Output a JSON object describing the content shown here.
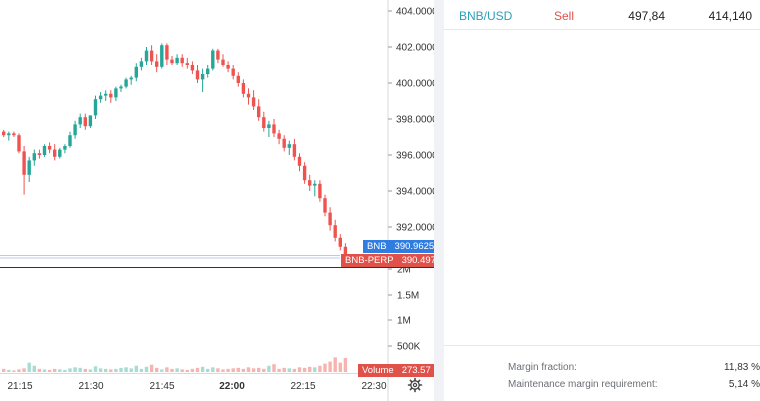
{
  "chart": {
    "price_axis_labels": [
      "404.0000",
      "402.0000",
      "400.0000",
      "398.0000",
      "396.0000",
      "394.0000",
      "392.0000"
    ],
    "volume_axis_labels": [
      "2M",
      "1.5M",
      "1M",
      "500K"
    ],
    "time_labels": [
      "21:15",
      "21:30",
      "21:45",
      "22:00",
      "22:15",
      "22:30"
    ],
    "bold_time_label": "22:00",
    "bnb_tag": {
      "name": "BNB",
      "value": "390.9625",
      "color": "#2f7de1"
    },
    "perp_tag": {
      "name": "BNB-PERP",
      "value": "390.4975",
      "color": "#e0514a"
    },
    "volume_tag": {
      "name": "Volume",
      "value": "273.57",
      "color": "#e0514a"
    },
    "up_color": "#26a69a",
    "down_color": "#ef5350"
  },
  "chart_data": {
    "type": "candlestick",
    "price_range": [
      390.5,
      404.5
    ],
    "volume_ticks": [
      500000,
      1000000,
      1500000,
      2000000
    ],
    "time_range": [
      "21:05",
      "22:25"
    ],
    "candles_ohlc": [
      [
        397.3,
        397.4,
        397.0,
        397.1
      ],
      [
        397.1,
        397.3,
        396.8,
        397.2
      ],
      [
        397.2,
        397.3,
        397.0,
        397.1
      ],
      [
        397.1,
        397.2,
        396.1,
        396.2
      ],
      [
        396.2,
        396.5,
        393.8,
        394.9
      ],
      [
        394.9,
        395.9,
        394.5,
        395.7
      ],
      [
        395.7,
        396.3,
        395.4,
        396.1
      ],
      [
        396.1,
        396.3,
        395.8,
        396.0
      ],
      [
        396.0,
        396.6,
        395.9,
        396.5
      ],
      [
        396.5,
        396.7,
        396.1,
        396.3
      ],
      [
        396.3,
        396.6,
        395.7,
        395.9
      ],
      [
        395.9,
        396.4,
        395.8,
        396.3
      ],
      [
        396.3,
        396.6,
        396.1,
        396.5
      ],
      [
        396.5,
        397.3,
        396.4,
        397.1
      ],
      [
        397.1,
        397.9,
        396.9,
        397.7
      ],
      [
        397.7,
        398.3,
        397.5,
        398.1
      ],
      [
        398.1,
        398.3,
        397.4,
        397.6
      ],
      [
        397.6,
        398.2,
        397.5,
        398.2
      ],
      [
        398.2,
        399.3,
        398.0,
        399.1
      ],
      [
        399.1,
        399.5,
        398.9,
        399.3
      ],
      [
        399.3,
        399.6,
        399.0,
        399.4
      ],
      [
        399.4,
        399.6,
        398.9,
        399.2
      ],
      [
        399.2,
        399.8,
        399.0,
        399.7
      ],
      [
        399.7,
        399.9,
        399.5,
        399.8
      ],
      [
        399.8,
        400.3,
        399.7,
        400.2
      ],
      [
        400.2,
        400.4,
        399.9,
        400.3
      ],
      [
        400.3,
        401.1,
        400.1,
        400.9
      ],
      [
        400.9,
        401.4,
        400.7,
        401.2
      ],
      [
        401.2,
        402.0,
        401.0,
        401.8
      ],
      [
        401.8,
        402.1,
        401.0,
        401.2
      ],
      [
        401.2,
        401.6,
        400.6,
        400.9
      ],
      [
        400.9,
        402.2,
        400.8,
        402.1
      ],
      [
        402.1,
        402.2,
        401.0,
        401.3
      ],
      [
        401.3,
        401.5,
        401.0,
        401.1
      ],
      [
        401.1,
        401.6,
        401.0,
        401.4
      ],
      [
        401.4,
        401.6,
        400.9,
        401.1
      ],
      [
        401.1,
        401.4,
        400.8,
        401.0
      ],
      [
        401.0,
        401.2,
        400.5,
        400.7
      ],
      [
        400.7,
        401.0,
        400.0,
        400.2
      ],
      [
        400.2,
        400.8,
        399.5,
        400.5
      ],
      [
        400.5,
        401.0,
        400.3,
        400.8
      ],
      [
        400.8,
        401.9,
        400.7,
        401.8
      ],
      [
        401.8,
        401.9,
        401.1,
        401.3
      ],
      [
        401.3,
        401.6,
        400.9,
        401.0
      ],
      [
        401.0,
        401.2,
        400.6,
        400.8
      ],
      [
        400.8,
        401.0,
        400.2,
        400.4
      ],
      [
        400.4,
        400.6,
        399.8,
        400.0
      ],
      [
        400.0,
        400.2,
        399.2,
        399.4
      ],
      [
        399.4,
        399.7,
        398.8,
        399.2
      ],
      [
        399.2,
        399.6,
        398.5,
        398.7
      ],
      [
        398.7,
        399.1,
        397.9,
        398.1
      ],
      [
        398.1,
        398.4,
        397.3,
        397.5
      ],
      [
        397.5,
        397.9,
        397.0,
        397.7
      ],
      [
        397.7,
        398.0,
        397.0,
        397.2
      ],
      [
        397.2,
        397.4,
        396.6,
        396.9
      ],
      [
        396.9,
        397.1,
        396.2,
        396.4
      ],
      [
        396.4,
        396.8,
        396.0,
        396.6
      ],
      [
        396.6,
        396.9,
        395.7,
        395.9
      ],
      [
        395.9,
        396.1,
        395.1,
        395.4
      ],
      [
        395.4,
        395.6,
        394.4,
        394.6
      ],
      [
        394.6,
        394.9,
        394.0,
        394.3
      ],
      [
        394.3,
        394.6,
        393.7,
        394.4
      ],
      [
        394.4,
        394.6,
        393.4,
        393.6
      ],
      [
        393.6,
        393.8,
        392.6,
        392.8
      ],
      [
        392.8,
        393.1,
        391.8,
        392.1
      ],
      [
        392.1,
        392.4,
        391.2,
        391.4
      ],
      [
        391.4,
        391.6,
        390.7,
        390.9
      ],
      [
        390.9,
        391.1,
        390.4,
        390.5
      ]
    ],
    "volumes_k": [
      60,
      40,
      30,
      50,
      70,
      180,
      120,
      60,
      50,
      40,
      60,
      50,
      40,
      70,
      90,
      80,
      60,
      50,
      110,
      70,
      60,
      50,
      60,
      80,
      90,
      70,
      120,
      60,
      100,
      140,
      80,
      50,
      90,
      60,
      70,
      50,
      40,
      60,
      80,
      100,
      60,
      90,
      70,
      50,
      60,
      70,
      80,
      60,
      90,
      70,
      80,
      60,
      120,
      150,
      60,
      80,
      70,
      60,
      90,
      80,
      100,
      90,
      120,
      160,
      200,
      280,
      180,
      270
    ]
  },
  "trade_row": {
    "symbol": "BNB/USD",
    "side": "Sell",
    "price": "497,84",
    "size": "414,140"
  },
  "margin": {
    "rows": [
      {
        "label": "Margin fraction:",
        "value": "11,83 %"
      },
      {
        "label": "Maintenance margin requirement:",
        "value": "5,14 %"
      }
    ]
  }
}
